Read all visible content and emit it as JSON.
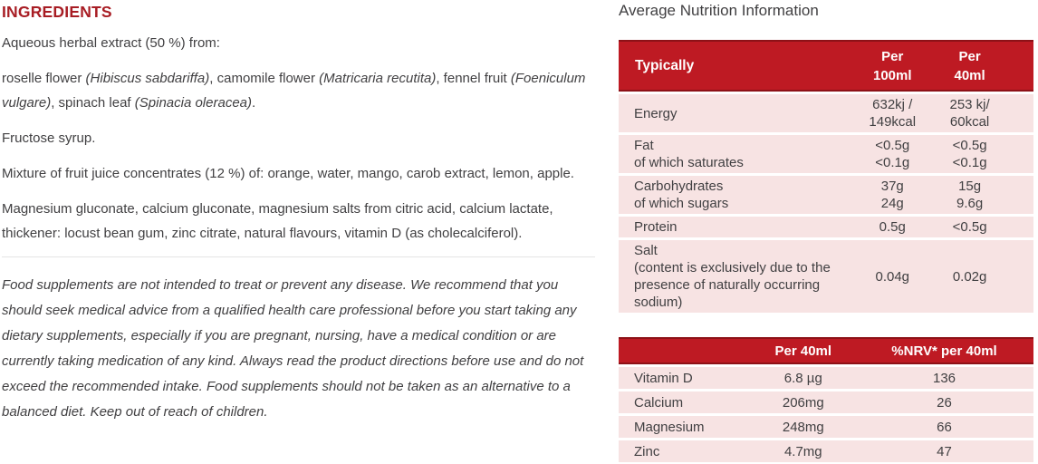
{
  "colors": {
    "heading_red": "#a81d24",
    "table_header_red": "#be1a23",
    "table_header_border_red": "#8d1117",
    "row_pink": "#f7e3e3",
    "body_text": "#414042",
    "divider": "#e4e4e4"
  },
  "ingredients": {
    "heading": "INGREDIENTS",
    "paragraphs": [
      [
        {
          "t": "Aqueous herbal extract (50 %) from:"
        }
      ],
      [
        {
          "t": "roselle flower "
        },
        {
          "t": "(Hibiscus sabdariffa)",
          "i": true
        },
        {
          "t": ", camomile flower "
        },
        {
          "t": "(Matricaria recutita)",
          "i": true
        },
        {
          "t": ", fennel fruit "
        },
        {
          "t": "(Foeniculum vulgare)",
          "i": true
        },
        {
          "t": ", spinach leaf "
        },
        {
          "t": "(Spinacia oleracea)",
          "i": true
        },
        {
          "t": "."
        }
      ],
      [
        {
          "t": "Fructose syrup."
        }
      ],
      [
        {
          "t": "Mixture of fruit juice concentrates (12 %) of: orange, water, mango, carob extract, lemon, apple."
        }
      ],
      [
        {
          "t": "Magnesium gluconate, calcium gluconate, magnesium salts from citric acid, calcium lactate, thickener: locust bean gum, zinc citrate, natural flavours, vitamin D (as cholecalciferol)."
        }
      ]
    ],
    "disclaimer": "Food supplements are not intended to treat or prevent any disease. We recommend that you should seek medical advice from a qualified health care professional before you start taking any dietary supplements, especially if you are pregnant, nursing, have a medical condition or are currently taking medication of any kind. Always read the product directions before use and do not exceed the recommended intake. Food supplements should not be taken as an alternative to a balanced diet. Keep out of reach of children."
  },
  "nutrition": {
    "title": "Average Nutrition Information",
    "table1": {
      "headers": [
        "Typically",
        "Per\n100ml",
        "Per\n40ml"
      ],
      "rows": [
        {
          "label": "Energy",
          "per100": "632kj /\n149kcal",
          "per40": "253 kj/\n60kcal"
        },
        {
          "label": "Fat\nof which saturates",
          "per100": "<0.5g\n<0.1g",
          "per40": "<0.5g\n<0.1g"
        },
        {
          "label": "Carbohydrates\nof which sugars",
          "per100": "37g\n24g",
          "per40": "15g\n9.6g"
        },
        {
          "label": "Protein",
          "per100": "0.5g",
          "per40": "<0.5g"
        },
        {
          "label": "Salt\n(content is exclusively due to the presence of naturally occurring sodium)",
          "per100": "0.04g",
          "per40": "0.02g"
        }
      ]
    },
    "table2": {
      "headers": [
        "",
        "Per 40ml",
        "%NRV* per 40ml"
      ],
      "rows": [
        {
          "label": "Vitamin D",
          "per40": "6.8 µg",
          "nrv": "136"
        },
        {
          "label": "Calcium",
          "per40": "206mg",
          "nrv": "26"
        },
        {
          "label": "Magnesium",
          "per40": "248mg",
          "nrv": "66"
        },
        {
          "label": "Zinc",
          "per40": "4.7mg",
          "nrv": "47"
        }
      ]
    }
  }
}
